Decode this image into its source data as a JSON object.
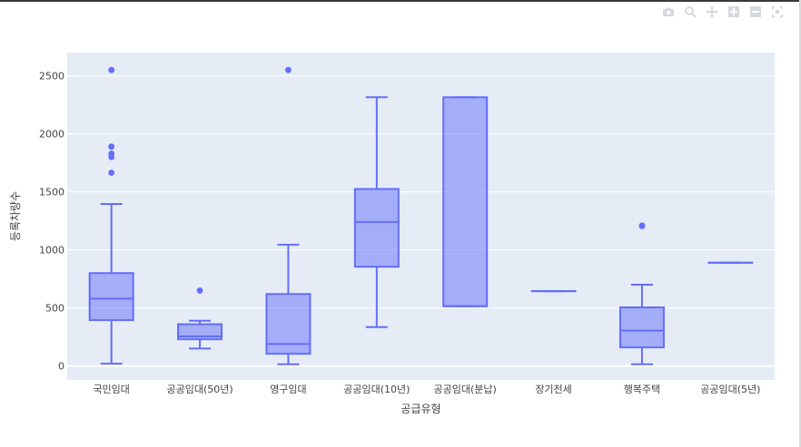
{
  "modebar": {
    "icons": [
      "camera-icon",
      "zoom-icon",
      "pan-icon",
      "zoom-in-icon",
      "zoom-out-icon",
      "autoscale-icon"
    ]
  },
  "colors": {
    "plot_bg": "#e5ecf6",
    "box_fill": "rgba(99,110,250,0.5)",
    "box_line": "#636efa",
    "grid": "#ffffff"
  },
  "chart_data": {
    "type": "box",
    "title": "",
    "xlabel": "공급유형",
    "ylabel": "등록차량수",
    "ylim": [
      -120,
      2700
    ],
    "yticks": [
      0,
      500,
      1000,
      1500,
      2000,
      2500
    ],
    "ytick_labels": [
      "0",
      "500",
      "1000",
      "1500",
      "2000",
      "2500"
    ],
    "grid": true,
    "categories": [
      "국민임대",
      "공공임대(50년)",
      "영구임대",
      "공공임대(10년)",
      "공공임대(분납)",
      "장기전세",
      "행복주택",
      "공공임대(5년)"
    ],
    "boxes": [
      {
        "min": 20,
        "q1": 395,
        "median": 580,
        "q3": 800,
        "max": 1395,
        "outliers": [
          1665,
          1800,
          1830,
          1890,
          2550
        ]
      },
      {
        "min": 150,
        "q1": 230,
        "median": 255,
        "q3": 360,
        "max": 390,
        "outliers": [
          650
        ]
      },
      {
        "min": 15,
        "q1": 105,
        "median": 190,
        "q3": 620,
        "max": 1045,
        "outliers": [
          2550
        ]
      },
      {
        "min": 335,
        "q1": 855,
        "median": 1240,
        "q3": 1525,
        "max": 2315,
        "outliers": []
      },
      {
        "min": 515,
        "q1": 515,
        "median": 515,
        "q3": 2315,
        "max": 2315,
        "outliers": []
      },
      {
        "min": 645,
        "q1": 645,
        "median": 645,
        "q3": 645,
        "max": 645,
        "outliers": []
      },
      {
        "min": 15,
        "q1": 160,
        "median": 305,
        "q3": 505,
        "max": 700,
        "outliers": [
          1205,
          1210
        ]
      },
      {
        "min": 890,
        "q1": 890,
        "median": 890,
        "q3": 890,
        "max": 890,
        "outliers": []
      }
    ]
  }
}
